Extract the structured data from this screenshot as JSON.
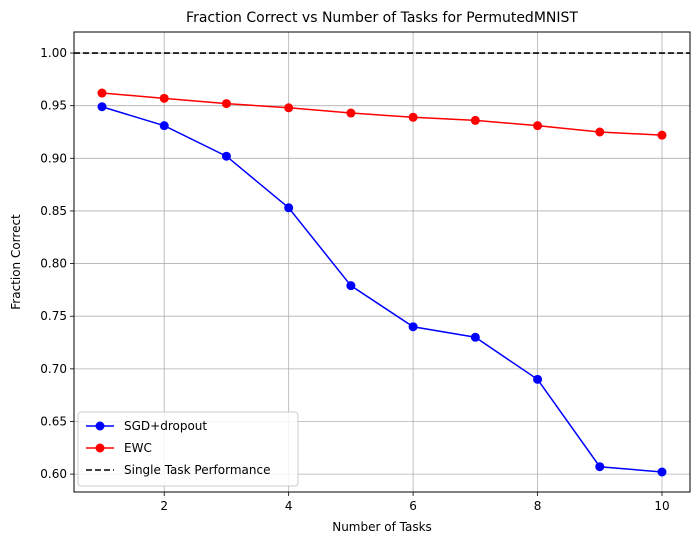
{
  "chart_data": {
    "type": "line",
    "title": "Fraction Correct vs Number of Tasks for PermutedMNIST",
    "xlabel": "Number of Tasks",
    "ylabel": "Fraction Correct",
    "xlim": [
      0.55,
      10.45
    ],
    "ylim": [
      0.583,
      1.02
    ],
    "xticks": [
      2,
      4,
      6,
      8,
      10
    ],
    "yticks": [
      0.6,
      0.65,
      0.7,
      0.75,
      0.8,
      0.85,
      0.9,
      0.95,
      1.0
    ],
    "grid": true,
    "legend_position": "lower-left",
    "x": [
      1,
      2,
      3,
      4,
      5,
      6,
      7,
      8,
      9,
      10
    ],
    "series": [
      {
        "name": "SGD+dropout",
        "color": "#0000ff",
        "marker": "circle",
        "values": [
          0.949,
          0.931,
          0.902,
          0.853,
          0.779,
          0.74,
          0.73,
          0.69,
          0.607,
          0.602
        ]
      },
      {
        "name": "EWC",
        "color": "#ff0000",
        "marker": "circle",
        "values": [
          0.962,
          0.957,
          0.952,
          0.948,
          0.943,
          0.939,
          0.936,
          0.931,
          0.925,
          0.922
        ]
      }
    ],
    "reference_lines": [
      {
        "name": "Single Task Performance",
        "y": 1.0,
        "color": "#000000",
        "style": "dashed"
      }
    ]
  }
}
